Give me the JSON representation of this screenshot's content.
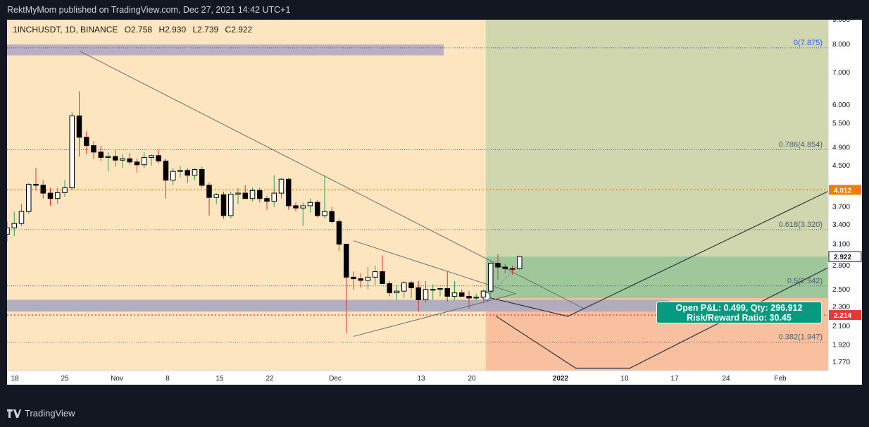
{
  "header": {
    "published_text": "RektMyMom published on TradingView.com, Dec 27, 2021 14:42 UTC+1"
  },
  "legend": {
    "symbol": "1INCHUSDT, 1D, BINANCE",
    "open": "O2.758",
    "high": "H2.930",
    "low": "L2.739",
    "close": "C2.922"
  },
  "footer": {
    "brand": "TradingView"
  },
  "position_tool": {
    "line1": "Open P&L: 0.499, Qty: 296.912",
    "line2": "Risk/Reward Ratio: 30.45"
  },
  "chart_data": {
    "type": "candlestick",
    "symbol": "1INCHUSDT",
    "interval": "1D",
    "exchange": "BINANCE",
    "y_scale": "log",
    "ylim": [
      1.7,
      9.0
    ],
    "price_ticks": [
      9.0,
      8.0,
      7.0,
      6.0,
      5.5,
      4.9,
      4.5,
      3.7,
      3.4,
      3.1,
      2.8,
      2.5,
      2.3,
      2.1,
      1.92,
      1.77
    ],
    "price_tick_labels": [
      "9.000",
      "8.000",
      "7.000",
      "6.000",
      "5.500",
      "4.900",
      "4.500",
      "3.700",
      "3.400",
      "3.100",
      "2.800",
      "2.500",
      "2.300",
      "2.100",
      "1.920",
      "1.770"
    ],
    "x_ticks": [
      "18",
      "25",
      "Nov",
      "8",
      "15",
      "22",
      "Dec",
      "13",
      "20",
      "2022",
      "10",
      "17",
      "24",
      "Feb"
    ],
    "price_tags": [
      {
        "label": "4.012",
        "value": 4.012,
        "color": "#f57c00"
      },
      {
        "label": "2.922",
        "value": 2.922,
        "color": "#ffffff"
      },
      {
        "label": "2.214",
        "value": 2.214,
        "color": "#e53935"
      }
    ],
    "fib_levels": [
      {
        "label": "0(7.875)",
        "value": 7.875
      },
      {
        "label": "0.786(4.854)",
        "value": 4.854
      },
      {
        "label": "0.618(3.320)",
        "value": 3.32
      },
      {
        "label": "0.5(2.542)",
        "value": 2.542
      },
      {
        "label": "0.382(1.947)",
        "value": 1.947
      }
    ],
    "position": {
      "entry": 2.4,
      "target": 7.875,
      "stop": 2.214
    },
    "candles": [
      [
        3.25,
        3.45,
        3.14,
        3.35
      ],
      [
        3.35,
        3.62,
        3.22,
        3.42
      ],
      [
        3.42,
        3.75,
        3.38,
        3.62
      ],
      [
        3.62,
        4.15,
        3.58,
        4.12
      ],
      [
        4.12,
        4.45,
        4.0,
        4.1
      ],
      [
        4.1,
        4.2,
        3.85,
        3.95
      ],
      [
        3.95,
        4.05,
        3.72,
        3.85
      ],
      [
        3.85,
        4.05,
        3.75,
        3.96
      ],
      [
        3.96,
        4.2,
        3.88,
        4.05
      ],
      [
        4.05,
        5.8,
        4.0,
        5.7
      ],
      [
        5.7,
        6.4,
        4.7,
        5.15
      ],
      [
        5.15,
        5.3,
        4.75,
        4.95
      ],
      [
        4.95,
        5.05,
        4.65,
        4.8
      ],
      [
        4.8,
        4.95,
        4.6,
        4.68
      ],
      [
        4.68,
        4.8,
        4.38,
        4.7
      ],
      [
        4.7,
        4.85,
        4.48,
        4.62
      ],
      [
        4.62,
        4.75,
        4.45,
        4.65
      ],
      [
        4.65,
        4.78,
        4.52,
        4.58
      ],
      [
        4.58,
        4.66,
        4.35,
        4.52
      ],
      [
        4.52,
        4.8,
        4.45,
        4.68
      ],
      [
        4.68,
        4.75,
        4.5,
        4.72
      ],
      [
        4.72,
        4.85,
        4.55,
        4.6
      ],
      [
        4.6,
        4.65,
        3.85,
        4.2
      ],
      [
        4.2,
        4.45,
        4.1,
        4.38
      ],
      [
        4.38,
        4.5,
        4.25,
        4.4
      ],
      [
        4.4,
        4.45,
        4.15,
        4.3
      ],
      [
        4.3,
        4.45,
        4.2,
        4.42
      ],
      [
        4.42,
        4.48,
        4.05,
        4.1
      ],
      [
        4.1,
        4.15,
        3.55,
        3.87
      ],
      [
        3.87,
        3.95,
        3.75,
        3.92
      ],
      [
        3.92,
        3.98,
        3.5,
        3.55
      ],
      [
        3.55,
        3.98,
        3.5,
        3.93
      ],
      [
        3.93,
        4.05,
        3.75,
        3.95
      ],
      [
        3.95,
        4.1,
        3.88,
        3.85
      ],
      [
        3.85,
        4.05,
        3.8,
        4.0
      ],
      [
        4.0,
        4.05,
        3.78,
        3.85
      ],
      [
        3.85,
        3.9,
        3.65,
        3.8
      ],
      [
        3.8,
        4.3,
        3.7,
        3.95
      ],
      [
        3.95,
        4.25,
        3.85,
        4.22
      ],
      [
        4.22,
        4.25,
        3.65,
        3.72
      ],
      [
        3.72,
        3.78,
        3.62,
        3.68
      ],
      [
        3.68,
        3.78,
        3.38,
        3.72
      ],
      [
        3.72,
        3.85,
        3.6,
        3.78
      ],
      [
        3.78,
        3.82,
        3.52,
        3.55
      ],
      [
        3.55,
        4.3,
        3.5,
        3.62
      ],
      [
        3.62,
        3.7,
        3.42,
        3.45
      ],
      [
        3.45,
        3.5,
        3.0,
        3.1
      ],
      [
        3.1,
        3.1,
        2.03,
        2.65
      ],
      [
        2.65,
        2.72,
        2.5,
        2.63
      ],
      [
        2.63,
        2.7,
        2.52,
        2.61
      ],
      [
        2.61,
        2.78,
        2.5,
        2.65
      ],
      [
        2.65,
        2.8,
        2.55,
        2.72
      ],
      [
        2.72,
        2.94,
        2.6,
        2.57
      ],
      [
        2.57,
        2.6,
        2.42,
        2.46
      ],
      [
        2.46,
        2.55,
        2.38,
        2.48
      ],
      [
        2.48,
        2.6,
        2.4,
        2.58
      ],
      [
        2.58,
        2.6,
        2.4,
        2.52
      ],
      [
        2.52,
        2.6,
        2.25,
        2.38
      ],
      [
        2.38,
        2.6,
        2.35,
        2.5
      ],
      [
        2.5,
        2.56,
        2.38,
        2.5
      ],
      [
        2.5,
        2.52,
        2.42,
        2.51
      ],
      [
        2.51,
        2.72,
        2.36,
        2.42
      ],
      [
        2.42,
        2.6,
        2.38,
        2.46
      ],
      [
        2.46,
        2.5,
        2.41,
        2.42
      ],
      [
        2.42,
        2.48,
        2.28,
        2.4
      ],
      [
        2.4,
        2.45,
        2.37,
        2.41
      ],
      [
        2.41,
        2.5,
        2.34,
        2.48
      ],
      [
        2.48,
        2.86,
        2.45,
        2.83
      ],
      [
        2.83,
        2.96,
        2.62,
        2.78
      ],
      [
        2.78,
        2.82,
        2.7,
        2.76
      ],
      [
        2.76,
        2.8,
        2.68,
        2.758
      ],
      [
        2.758,
        2.93,
        2.739,
        2.922
      ]
    ]
  }
}
